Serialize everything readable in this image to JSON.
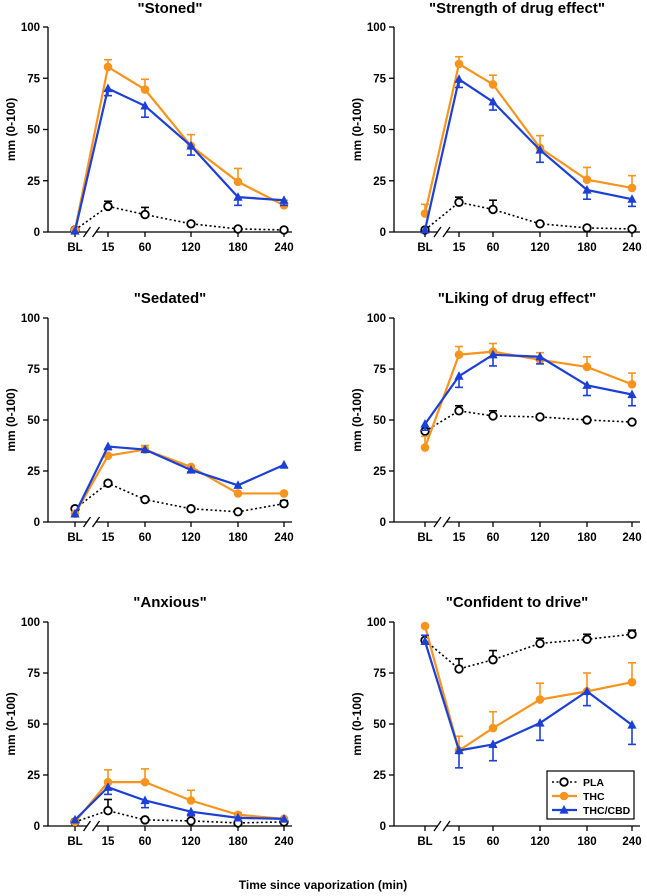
{
  "figure": {
    "xlabel": "Time since vaporization (min)",
    "colors": {
      "PLA": "#000000",
      "THC": "#f7941d",
      "THC/CBD": "#1c3fd6"
    },
    "legend": {
      "placement": "bottom-right of panel 6",
      "entries": [
        "PLA",
        "THC",
        "THC/CBD"
      ]
    }
  },
  "chart_data": [
    {
      "type": "line",
      "title": "\"Stoned\"",
      "ylabel": "mm (0-100)",
      "xlabel": "",
      "categories": [
        "BL",
        "15",
        "60",
        "120",
        "180",
        "240"
      ],
      "yticks": [
        "0",
        "25",
        "50",
        "75",
        "100"
      ],
      "ylim": [
        0,
        100
      ],
      "series": [
        {
          "name": "PLA",
          "values": [
            1,
            12.5,
            8.5,
            4,
            1.5,
            1
          ],
          "errors": [
            0,
            2.5,
            3.5,
            0,
            0,
            0
          ]
        },
        {
          "name": "THC",
          "values": [
            1,
            80.5,
            69.5,
            42,
            24.5,
            13
          ],
          "errors": [
            0,
            3.5,
            5,
            5.5,
            6.5,
            2.5
          ]
        },
        {
          "name": "THC/CBD",
          "values": [
            0.5,
            70,
            61.5,
            42,
            17,
            15.5
          ],
          "errors": [
            0,
            3.5,
            5.5,
            4.5,
            4,
            2.5
          ]
        }
      ]
    },
    {
      "type": "line",
      "title": "\"Strength of drug effect\"",
      "ylabel": "mm (0-100)",
      "xlabel": "",
      "categories": [
        "BL",
        "15",
        "60",
        "120",
        "180",
        "240"
      ],
      "yticks": [
        "0",
        "25",
        "50",
        "75",
        "100"
      ],
      "ylim": [
        0,
        100
      ],
      "series": [
        {
          "name": "PLA",
          "values": [
            1,
            14.5,
            11,
            4,
            2,
            1.5
          ],
          "errors": [
            0,
            2.5,
            4.5,
            0,
            0,
            0
          ]
        },
        {
          "name": "THC",
          "values": [
            9,
            82,
            72,
            41,
            25.5,
            21.5
          ],
          "errors": [
            4.5,
            3.5,
            4.5,
            6,
            6,
            6
          ]
        },
        {
          "name": "THC/CBD",
          "values": [
            1,
            74.5,
            63.5,
            40,
            20.5,
            16
          ],
          "errors": [
            0,
            4,
            4,
            6,
            4.5,
            3.5
          ]
        }
      ]
    },
    {
      "type": "line",
      "title": "\"Sedated\"",
      "ylabel": "mm (0-100)",
      "xlabel": "",
      "categories": [
        "BL",
        "15",
        "60",
        "120",
        "180",
        "240"
      ],
      "yticks": [
        "0",
        "25",
        "50",
        "75",
        "100"
      ],
      "ylim": [
        0,
        100
      ],
      "series": [
        {
          "name": "PLA",
          "values": [
            6.5,
            19,
            11,
            6.5,
            5,
            9
          ],
          "errors": [
            0,
            0,
            0,
            0,
            0,
            1.5
          ]
        },
        {
          "name": "THC",
          "values": [
            4,
            32.5,
            35.5,
            27,
            14,
            14
          ],
          "errors": [
            0,
            0,
            2,
            0,
            0,
            0
          ]
        },
        {
          "name": "THC/CBD",
          "values": [
            4,
            37,
            35.5,
            25.5,
            18,
            28
          ],
          "errors": [
            0,
            1.5,
            0,
            1,
            0,
            1.5
          ]
        }
      ]
    },
    {
      "type": "line",
      "title": "\"Liking of drug effect\"",
      "ylabel": "mm (0-100)",
      "xlabel": "",
      "categories": [
        "BL",
        "15",
        "60",
        "120",
        "180",
        "240"
      ],
      "yticks": [
        "0",
        "25",
        "50",
        "75",
        "100"
      ],
      "ylim": [
        0,
        100
      ],
      "series": [
        {
          "name": "PLA",
          "values": [
            44.5,
            54.5,
            52,
            51.5,
            50,
            49
          ],
          "errors": [
            0,
            2.5,
            2.5,
            0,
            0,
            0
          ]
        },
        {
          "name": "THC",
          "values": [
            36.5,
            82,
            83.5,
            79.5,
            76,
            67.5
          ],
          "errors": [
            5.5,
            4,
            4,
            3.5,
            5,
            5.5
          ]
        },
        {
          "name": "THC/CBD",
          "values": [
            48,
            71.5,
            82,
            81,
            67,
            62.5
          ],
          "errors": [
            3,
            5.5,
            5.5,
            3.5,
            5,
            5.5
          ]
        }
      ]
    },
    {
      "type": "line",
      "title": "\"Anxious\"",
      "ylabel": "mm (0-100)",
      "xlabel": "",
      "categories": [
        "BL",
        "15",
        "60",
        "120",
        "180",
        "240"
      ],
      "yticks": [
        "0",
        "25",
        "50",
        "75",
        "100"
      ],
      "ylim": [
        0,
        100
      ],
      "series": [
        {
          "name": "PLA",
          "values": [
            2,
            7.5,
            3,
            2.5,
            1.5,
            2
          ],
          "errors": [
            0,
            5.5,
            0,
            0,
            0,
            0
          ]
        },
        {
          "name": "THC",
          "values": [
            2,
            21.5,
            21.5,
            12.5,
            5.5,
            3.5
          ],
          "errors": [
            0,
            6,
            6.5,
            5,
            1,
            0
          ]
        },
        {
          "name": "THC/CBD",
          "values": [
            3,
            19,
            12.5,
            7,
            4,
            3.5
          ],
          "errors": [
            0,
            3.5,
            3.5,
            2,
            0,
            0
          ]
        }
      ]
    },
    {
      "type": "line",
      "title": "\"Confident to drive\"",
      "ylabel": "mm (0-100)",
      "xlabel": "",
      "categories": [
        "BL",
        "15",
        "60",
        "120",
        "180",
        "240"
      ],
      "yticks": [
        "0",
        "25",
        "50",
        "75",
        "100"
      ],
      "ylim": [
        0,
        100
      ],
      "series": [
        {
          "name": "PLA",
          "values": [
            91,
            77,
            81.5,
            89.5,
            91.5,
            94
          ],
          "errors": [
            0,
            5,
            4.5,
            2.5,
            2.5,
            2
          ]
        },
        {
          "name": "THC",
          "values": [
            98,
            37,
            48,
            62,
            66,
            70.5
          ],
          "errors": [
            0,
            7,
            8,
            8,
            9,
            9.5
          ]
        },
        {
          "name": "THC/CBD",
          "values": [
            90.5,
            37,
            40,
            50.5,
            66,
            49.5
          ],
          "errors": [
            3,
            8.5,
            8,
            8.5,
            7,
            9.5
          ]
        }
      ]
    }
  ]
}
